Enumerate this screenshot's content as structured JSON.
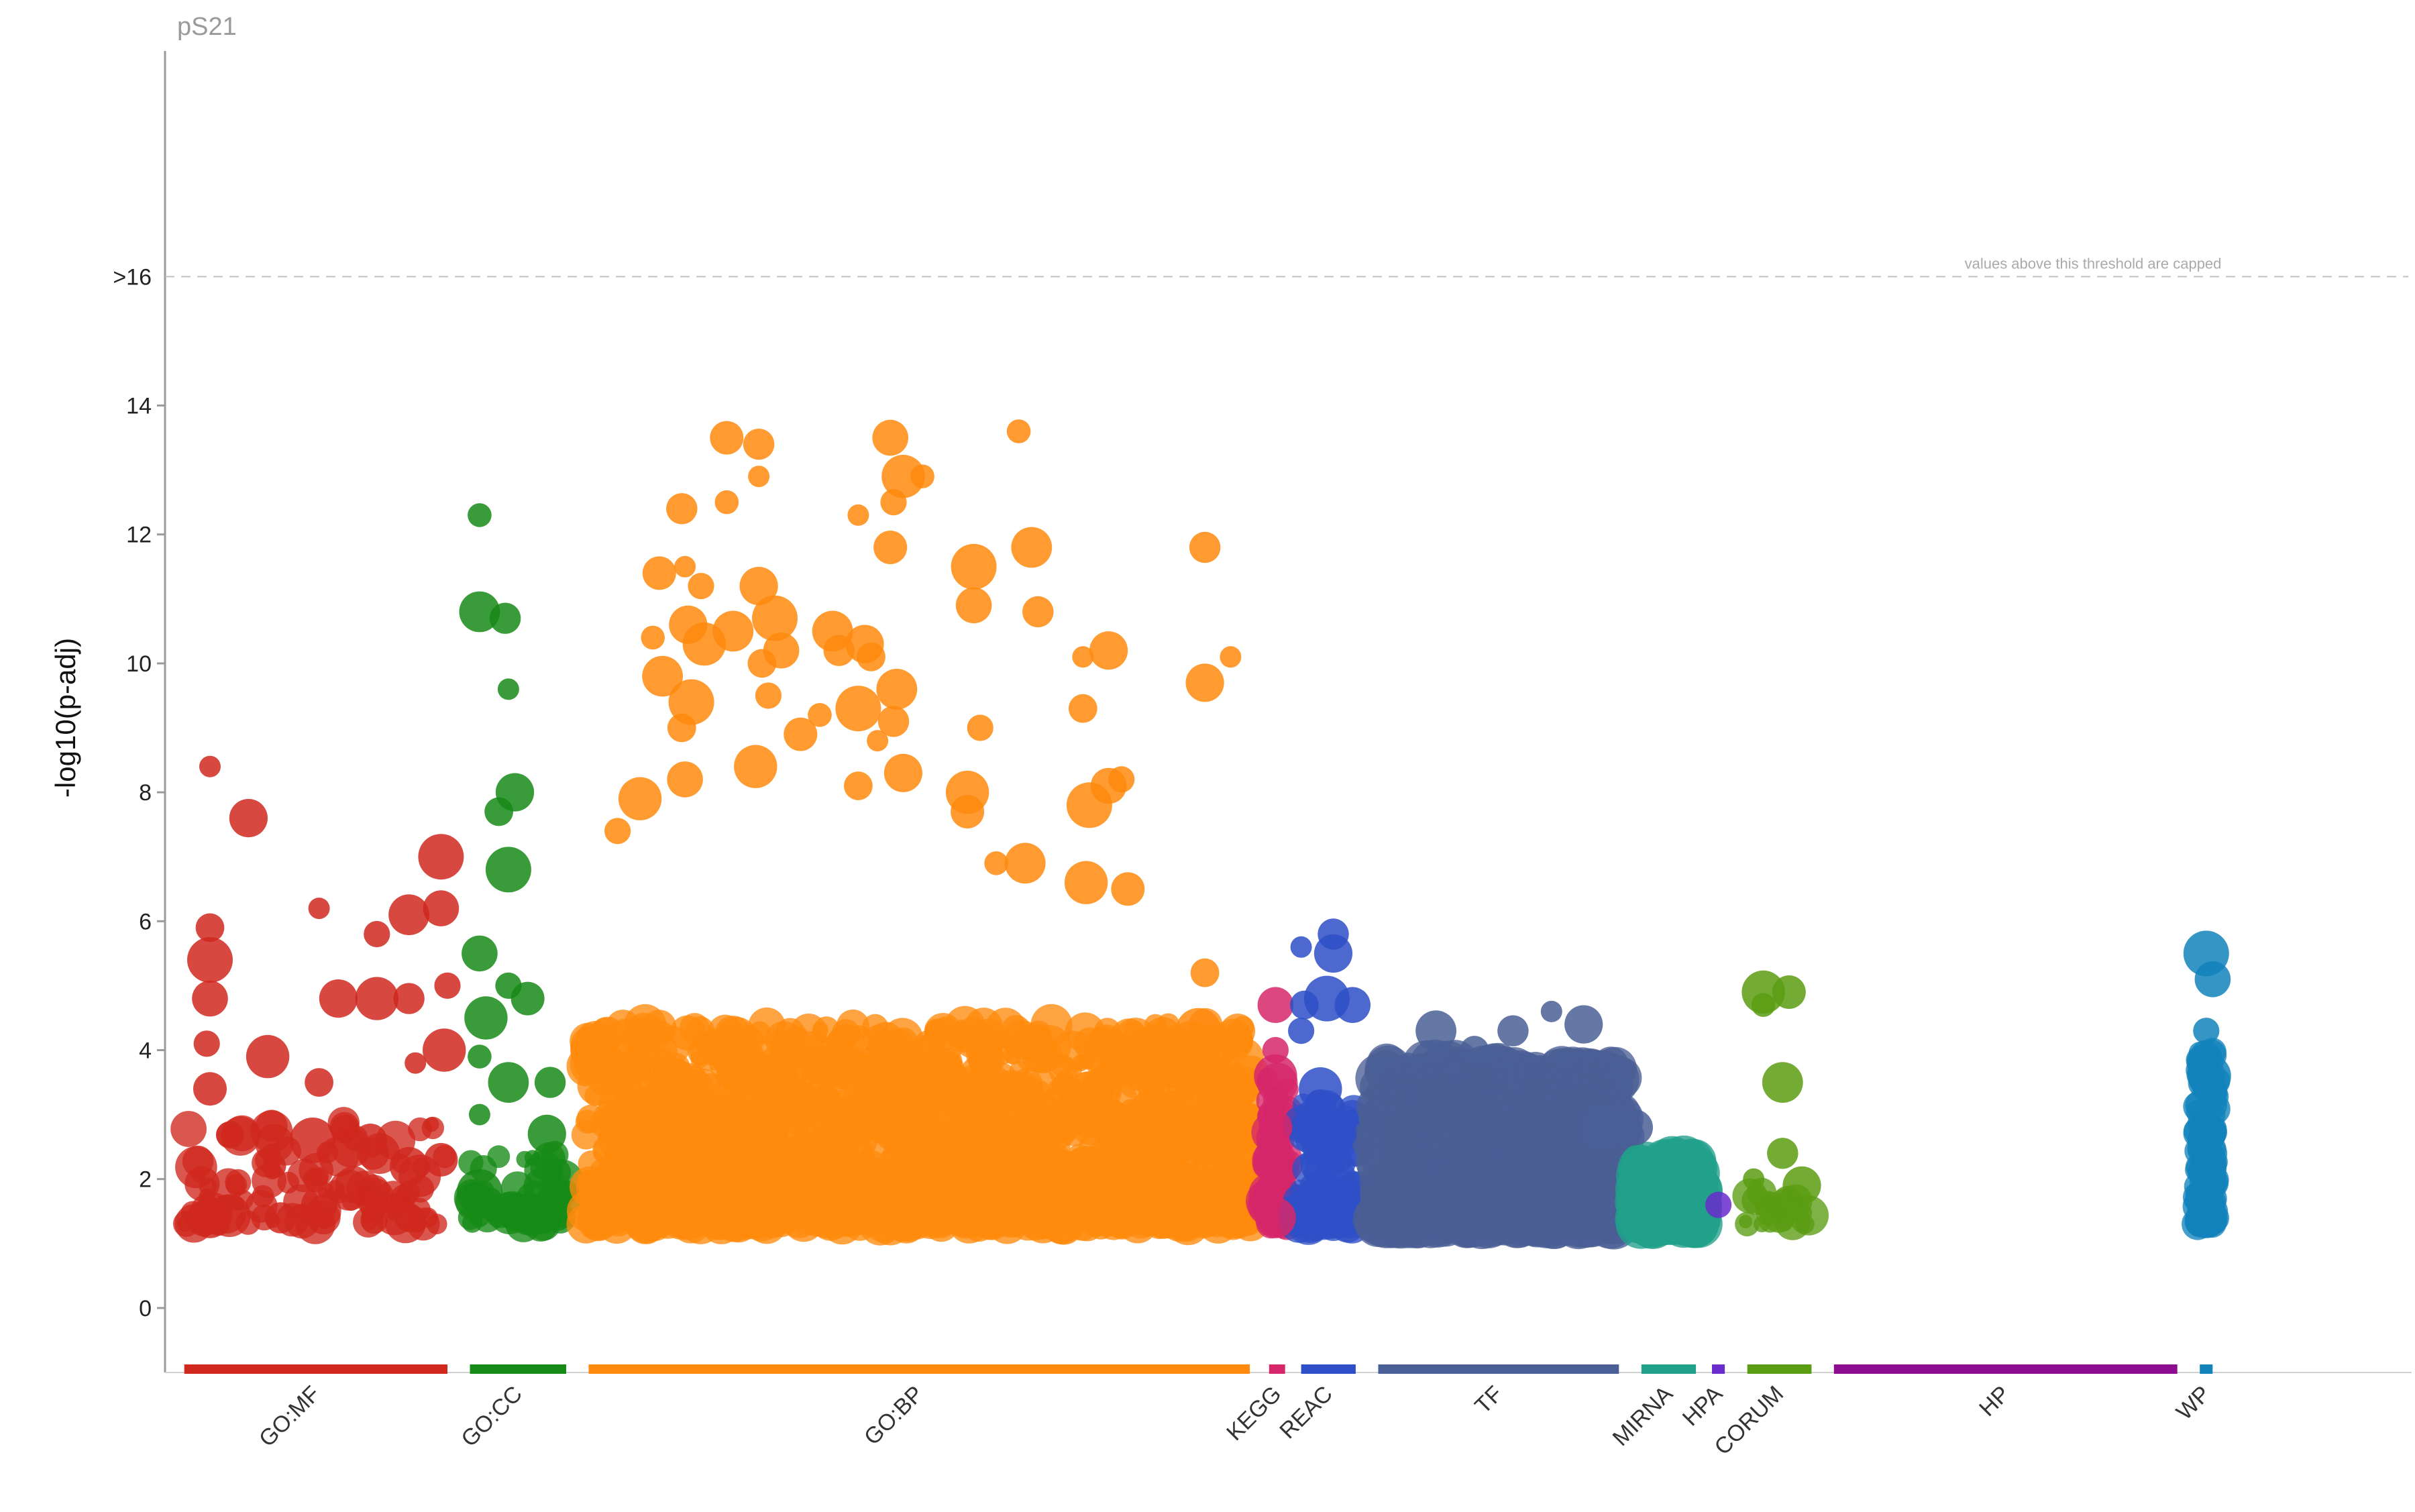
{
  "chart_data": {
    "type": "scatter",
    "title": "pS21",
    "ylabel": "-log10(p-adj)",
    "ylim": [
      -1,
      19.5
    ],
    "y_ticks": [
      0,
      2,
      4,
      6,
      8,
      10,
      12,
      14
    ],
    "cap": {
      "value": 16,
      "label": ">16",
      "note": "values above this threshold are capped"
    },
    "grid": false,
    "legend": "none",
    "sources": [
      {
        "name": "GO:MF",
        "color": "#d0281e",
        "start": 0.03,
        "end": 0.44
      },
      {
        "name": "GO:CC",
        "color": "#168a16",
        "start": 0.475,
        "end": 0.625
      },
      {
        "name": "GO:BP",
        "color": "#ff8a0d",
        "start": 0.66,
        "end": 1.69
      },
      {
        "name": "KEGG",
        "color": "#d6276a",
        "start": 1.72,
        "end": 1.745
      },
      {
        "name": "REAC",
        "color": "#2e4fc7",
        "start": 1.77,
        "end": 1.855
      },
      {
        "name": "TF",
        "color": "#4a5f95",
        "start": 1.89,
        "end": 2.265
      },
      {
        "name": "MIRNA",
        "color": "#21a08a",
        "start": 2.3,
        "end": 2.385
      },
      {
        "name": "HPA",
        "color": "#6a2ccd",
        "start": 2.41,
        "end": 2.43
      },
      {
        "name": "CORUM",
        "color": "#5a9c12",
        "start": 2.465,
        "end": 2.565
      },
      {
        "name": "HP",
        "color": "#8c0d8f",
        "start": 2.6,
        "end": 3.135
      },
      {
        "name": "WP",
        "color": "#1283bb",
        "start": 3.17,
        "end": 3.19
      }
    ],
    "highlighted_points": [
      {
        "source": "GO:MF",
        "x": 0.07,
        "y": 8.4
      },
      {
        "source": "GO:MF",
        "x": 0.13,
        "y": 7.6
      },
      {
        "source": "GO:MF",
        "x": 0.07,
        "y": 5.9
      },
      {
        "source": "GO:MF",
        "x": 0.07,
        "y": 5.4
      },
      {
        "source": "GO:MF",
        "x": 0.07,
        "y": 4.8
      },
      {
        "source": "GO:MF",
        "x": 0.065,
        "y": 4.1
      },
      {
        "source": "GO:MF",
        "x": 0.16,
        "y": 3.9
      },
      {
        "source": "GO:MF",
        "x": 0.07,
        "y": 3.4
      },
      {
        "source": "GO:MF",
        "x": 0.17,
        "y": 2.2
      },
      {
        "source": "GO:MF",
        "x": 0.07,
        "y": 1.4
      },
      {
        "source": "GO:MF",
        "x": 0.18,
        "y": 1.4
      },
      {
        "source": "GO:MF",
        "x": 0.24,
        "y": 6.2
      },
      {
        "source": "GO:MF",
        "x": 0.27,
        "y": 4.8
      },
      {
        "source": "GO:MF",
        "x": 0.24,
        "y": 3.5
      },
      {
        "source": "GO:MF",
        "x": 0.23,
        "y": 2.6
      },
      {
        "source": "GO:MF",
        "x": 0.24,
        "y": 1.6
      },
      {
        "source": "GO:MF",
        "x": 0.33,
        "y": 5.8
      },
      {
        "source": "GO:MF",
        "x": 0.33,
        "y": 4.8
      },
      {
        "source": "GO:MF",
        "x": 0.32,
        "y": 2.6
      },
      {
        "source": "GO:MF",
        "x": 0.33,
        "y": 1.6
      },
      {
        "source": "GO:MF",
        "x": 0.38,
        "y": 6.1
      },
      {
        "source": "GO:MF",
        "x": 0.38,
        "y": 4.8
      },
      {
        "source": "GO:MF",
        "x": 0.39,
        "y": 3.8
      },
      {
        "source": "GO:MF",
        "x": 0.38,
        "y": 2.2
      },
      {
        "source": "GO:MF",
        "x": 0.38,
        "y": 1.4
      },
      {
        "source": "GO:MF",
        "x": 0.43,
        "y": 7.0
      },
      {
        "source": "GO:MF",
        "x": 0.43,
        "y": 6.2
      },
      {
        "source": "GO:MF",
        "x": 0.44,
        "y": 5.0
      },
      {
        "source": "GO:MF",
        "x": 0.435,
        "y": 4.0
      },
      {
        "source": "GO:MF",
        "x": 0.43,
        "y": 2.3
      },
      {
        "source": "GO:CC",
        "x": 0.49,
        "y": 12.3
      },
      {
        "source": "GO:CC",
        "x": 0.49,
        "y": 10.8
      },
      {
        "source": "GO:CC",
        "x": 0.53,
        "y": 10.7
      },
      {
        "source": "GO:CC",
        "x": 0.535,
        "y": 9.6
      },
      {
        "source": "GO:CC",
        "x": 0.545,
        "y": 8.0
      },
      {
        "source": "GO:CC",
        "x": 0.52,
        "y": 7.7
      },
      {
        "source": "GO:CC",
        "x": 0.535,
        "y": 6.8
      },
      {
        "source": "GO:CC",
        "x": 0.49,
        "y": 5.5
      },
      {
        "source": "GO:CC",
        "x": 0.535,
        "y": 5.0
      },
      {
        "source": "GO:CC",
        "x": 0.5,
        "y": 4.5
      },
      {
        "source": "GO:CC",
        "x": 0.565,
        "y": 4.8
      },
      {
        "source": "GO:CC",
        "x": 0.49,
        "y": 3.9
      },
      {
        "source": "GO:CC",
        "x": 0.535,
        "y": 3.5
      },
      {
        "source": "GO:CC",
        "x": 0.6,
        "y": 3.5
      },
      {
        "source": "GO:CC",
        "x": 0.49,
        "y": 3.0
      },
      {
        "source": "GO:CC",
        "x": 0.595,
        "y": 2.7
      },
      {
        "source": "GO:CC",
        "x": 0.61,
        "y": 2.1
      },
      {
        "source": "GO:CC",
        "x": 0.49,
        "y": 1.8
      },
      {
        "source": "GO:CC",
        "x": 0.55,
        "y": 1.5
      },
      {
        "source": "GO:BP",
        "x": 0.705,
        "y": 7.4
      },
      {
        "source": "GO:BP",
        "x": 0.74,
        "y": 7.9
      },
      {
        "source": "GO:BP",
        "x": 0.77,
        "y": 11.4
      },
      {
        "source": "GO:BP",
        "x": 0.76,
        "y": 10.4
      },
      {
        "source": "GO:BP",
        "x": 0.775,
        "y": 9.8
      },
      {
        "source": "GO:BP",
        "x": 0.805,
        "y": 12.4
      },
      {
        "source": "GO:BP",
        "x": 0.81,
        "y": 11.5
      },
      {
        "source": "GO:BP",
        "x": 0.815,
        "y": 10.6
      },
      {
        "source": "GO:BP",
        "x": 0.805,
        "y": 9.0
      },
      {
        "source": "GO:BP",
        "x": 0.82,
        "y": 9.4
      },
      {
        "source": "GO:BP",
        "x": 0.81,
        "y": 8.2
      },
      {
        "source": "GO:BP",
        "x": 0.835,
        "y": 11.2
      },
      {
        "source": "GO:BP",
        "x": 0.84,
        "y": 10.3
      },
      {
        "source": "GO:BP",
        "x": 0.875,
        "y": 13.5
      },
      {
        "source": "GO:BP",
        "x": 0.875,
        "y": 12.5
      },
      {
        "source": "GO:BP",
        "x": 0.885,
        "y": 10.5
      },
      {
        "source": "GO:BP",
        "x": 0.925,
        "y": 13.4
      },
      {
        "source": "GO:BP",
        "x": 0.925,
        "y": 12.9
      },
      {
        "source": "GO:BP",
        "x": 0.925,
        "y": 11.2
      },
      {
        "source": "GO:BP",
        "x": 0.93,
        "y": 10.0
      },
      {
        "source": "GO:BP",
        "x": 0.95,
        "y": 10.7
      },
      {
        "source": "GO:BP",
        "x": 0.96,
        "y": 10.2
      },
      {
        "source": "GO:BP",
        "x": 0.94,
        "y": 9.5
      },
      {
        "source": "GO:BP",
        "x": 0.92,
        "y": 8.4
      },
      {
        "source": "GO:BP",
        "x": 0.99,
        "y": 8.9
      },
      {
        "source": "GO:BP",
        "x": 1.02,
        "y": 9.2
      },
      {
        "source": "GO:BP",
        "x": 1.04,
        "y": 10.5
      },
      {
        "source": "GO:BP",
        "x": 1.05,
        "y": 10.2
      },
      {
        "source": "GO:BP",
        "x": 1.08,
        "y": 12.3
      },
      {
        "source": "GO:BP",
        "x": 1.09,
        "y": 10.3
      },
      {
        "source": "GO:BP",
        "x": 1.1,
        "y": 10.1
      },
      {
        "source": "GO:BP",
        "x": 1.08,
        "y": 9.3
      },
      {
        "source": "GO:BP",
        "x": 1.13,
        "y": 13.5
      },
      {
        "source": "GO:BP",
        "x": 1.135,
        "y": 12.5
      },
      {
        "source": "GO:BP",
        "x": 1.15,
        "y": 12.9
      },
      {
        "source": "GO:BP",
        "x": 1.13,
        "y": 11.8
      },
      {
        "source": "GO:BP",
        "x": 1.18,
        "y": 12.9
      },
      {
        "source": "GO:BP",
        "x": 1.14,
        "y": 9.6
      },
      {
        "source": "GO:BP",
        "x": 1.135,
        "y": 9.1
      },
      {
        "source": "GO:BP",
        "x": 1.11,
        "y": 8.8
      },
      {
        "source": "GO:BP",
        "x": 1.15,
        "y": 8.3
      },
      {
        "source": "GO:BP",
        "x": 1.08,
        "y": 8.1
      },
      {
        "source": "GO:BP",
        "x": 1.26,
        "y": 11.5
      },
      {
        "source": "GO:BP",
        "x": 1.26,
        "y": 10.9
      },
      {
        "source": "GO:BP",
        "x": 1.27,
        "y": 9.0
      },
      {
        "source": "GO:BP",
        "x": 1.25,
        "y": 8.0
      },
      {
        "source": "GO:BP",
        "x": 1.25,
        "y": 7.7
      },
      {
        "source": "GO:BP",
        "x": 1.33,
        "y": 13.6
      },
      {
        "source": "GO:BP",
        "x": 1.35,
        "y": 11.8
      },
      {
        "source": "GO:BP",
        "x": 1.36,
        "y": 10.8
      },
      {
        "source": "GO:BP",
        "x": 1.43,
        "y": 10.1
      },
      {
        "source": "GO:BP",
        "x": 1.47,
        "y": 10.2
      },
      {
        "source": "GO:BP",
        "x": 1.43,
        "y": 9.3
      },
      {
        "source": "GO:BP",
        "x": 1.44,
        "y": 7.8
      },
      {
        "source": "GO:BP",
        "x": 1.47,
        "y": 8.1
      },
      {
        "source": "GO:BP",
        "x": 1.49,
        "y": 8.2
      },
      {
        "source": "GO:BP",
        "x": 1.435,
        "y": 6.6
      },
      {
        "source": "GO:BP",
        "x": 1.5,
        "y": 6.5
      },
      {
        "source": "GO:BP",
        "x": 1.295,
        "y": 6.9
      },
      {
        "source": "GO:BP",
        "x": 1.34,
        "y": 6.9
      },
      {
        "source": "GO:BP",
        "x": 1.62,
        "y": 11.8
      },
      {
        "source": "GO:BP",
        "x": 1.66,
        "y": 10.1
      },
      {
        "source": "GO:BP",
        "x": 1.62,
        "y": 9.7
      },
      {
        "source": "GO:BP",
        "x": 1.62,
        "y": 5.2
      },
      {
        "source": "GO:BP",
        "x": 1.61,
        "y": 4.3
      },
      {
        "source": "KEGG",
        "x": 1.73,
        "y": 4.7
      },
      {
        "source": "KEGG",
        "x": 1.73,
        "y": 4.0
      },
      {
        "source": "KEGG",
        "x": 1.73,
        "y": 3.6
      },
      {
        "source": "KEGG",
        "x": 1.73,
        "y": 2.8
      },
      {
        "source": "KEGG",
        "x": 1.73,
        "y": 2.0
      },
      {
        "source": "KEGG",
        "x": 1.73,
        "y": 1.4
      },
      {
        "source": "REAC",
        "x": 1.82,
        "y": 5.8
      },
      {
        "source": "REAC",
        "x": 1.77,
        "y": 5.6
      },
      {
        "source": "REAC",
        "x": 1.82,
        "y": 5.5
      },
      {
        "source": "REAC",
        "x": 1.775,
        "y": 4.7
      },
      {
        "source": "REAC",
        "x": 1.81,
        "y": 4.8
      },
      {
        "source": "REAC",
        "x": 1.85,
        "y": 4.7
      },
      {
        "source": "REAC",
        "x": 1.77,
        "y": 4.3
      },
      {
        "source": "REAC",
        "x": 1.8,
        "y": 3.4
      },
      {
        "source": "REAC",
        "x": 1.83,
        "y": 2.7
      },
      {
        "source": "REAC",
        "x": 1.78,
        "y": 1.6
      },
      {
        "source": "TF",
        "x": 1.98,
        "y": 4.3
      },
      {
        "source": "TF",
        "x": 2.1,
        "y": 4.3
      },
      {
        "source": "TF",
        "x": 2.16,
        "y": 4.6
      },
      {
        "source": "TF",
        "x": 2.21,
        "y": 4.4
      },
      {
        "source": "TF",
        "x": 2.04,
        "y": 4.0
      },
      {
        "source": "TF",
        "x": 2.24,
        "y": 2.8
      },
      {
        "source": "TF",
        "x": 2.29,
        "y": 2.8
      },
      {
        "source": "HPA",
        "x": 2.42,
        "y": 1.6
      },
      {
        "source": "CORUM",
        "x": 2.49,
        "y": 4.9
      },
      {
        "source": "CORUM",
        "x": 2.53,
        "y": 4.9
      },
      {
        "source": "CORUM",
        "x": 2.49,
        "y": 4.7
      },
      {
        "source": "CORUM",
        "x": 2.52,
        "y": 3.5
      },
      {
        "source": "CORUM",
        "x": 2.52,
        "y": 2.4
      },
      {
        "source": "CORUM",
        "x": 2.475,
        "y": 2.0
      },
      {
        "source": "CORUM",
        "x": 2.55,
        "y": 1.9
      },
      {
        "source": "CORUM",
        "x": 2.5,
        "y": 1.5
      },
      {
        "source": "WP",
        "x": 3.18,
        "y": 5.5
      },
      {
        "source": "WP",
        "x": 3.19,
        "y": 5.1
      },
      {
        "source": "WP",
        "x": 3.18,
        "y": 4.3
      },
      {
        "source": "WP",
        "x": 3.185,
        "y": 3.6
      },
      {
        "source": "WP",
        "x": 3.18,
        "y": 2.8
      },
      {
        "source": "WP",
        "x": 3.185,
        "y": 2.0
      },
      {
        "source": "WP",
        "x": 3.18,
        "y": 1.4
      }
    ]
  }
}
